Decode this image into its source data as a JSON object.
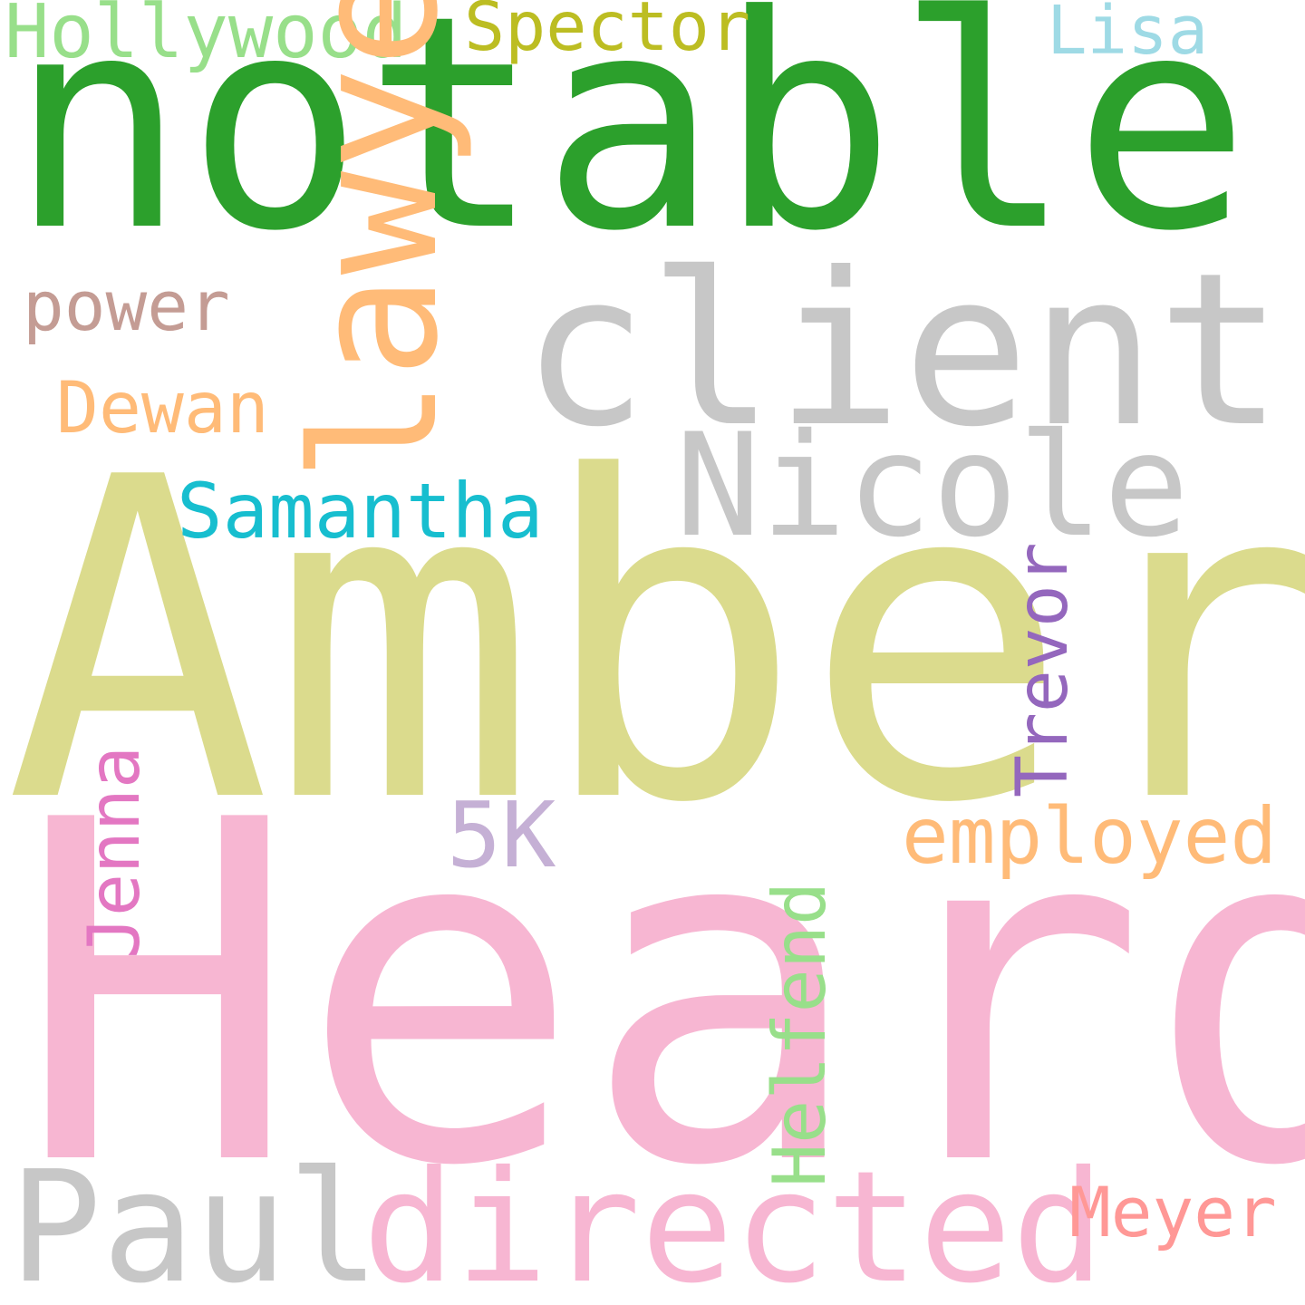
{
  "words": [
    {
      "key": "notable",
      "text": "notable",
      "color": "#2ca02c"
    },
    {
      "key": "amber",
      "text": "Amber",
      "color": "#dbdb8d"
    },
    {
      "key": "heard",
      "text": "Heard",
      "color": "#f7b6d2"
    },
    {
      "key": "client",
      "text": "client",
      "color": "#c7c7c7"
    },
    {
      "key": "nicole",
      "text": "Nicole",
      "color": "#c7c7c7"
    },
    {
      "key": "paul",
      "text": "Paul",
      "color": "#c7c7c7"
    },
    {
      "key": "directed",
      "text": "directed",
      "color": "#f7b6d2"
    },
    {
      "key": "five-k",
      "text": "5K",
      "color": "#c5b0d5"
    },
    {
      "key": "employed",
      "text": "employed",
      "color": "#ffbb78"
    },
    {
      "key": "lawyers",
      "text": "lawyers",
      "color": "#ffbb78"
    },
    {
      "key": "samantha",
      "text": "Samantha",
      "color": "#17becf"
    },
    {
      "key": "hollywood",
      "text": "Hollywood",
      "color": "#98df8a"
    },
    {
      "key": "spector",
      "text": "Spector",
      "color": "#bcbd22"
    },
    {
      "key": "lisa",
      "text": "Lisa",
      "color": "#9edae5"
    },
    {
      "key": "power",
      "text": "power",
      "color": "#c49c94"
    },
    {
      "key": "dewan",
      "text": "Dewan",
      "color": "#ffbb78"
    },
    {
      "key": "trevor",
      "text": "Trevor",
      "color": "#9467bd"
    },
    {
      "key": "jenna",
      "text": "Jenna",
      "color": "#e377c2"
    },
    {
      "key": "helfend",
      "text": "Helfend",
      "color": "#98df8a"
    },
    {
      "key": "meyer",
      "text": "Meyer",
      "color": "#ff9896"
    }
  ]
}
